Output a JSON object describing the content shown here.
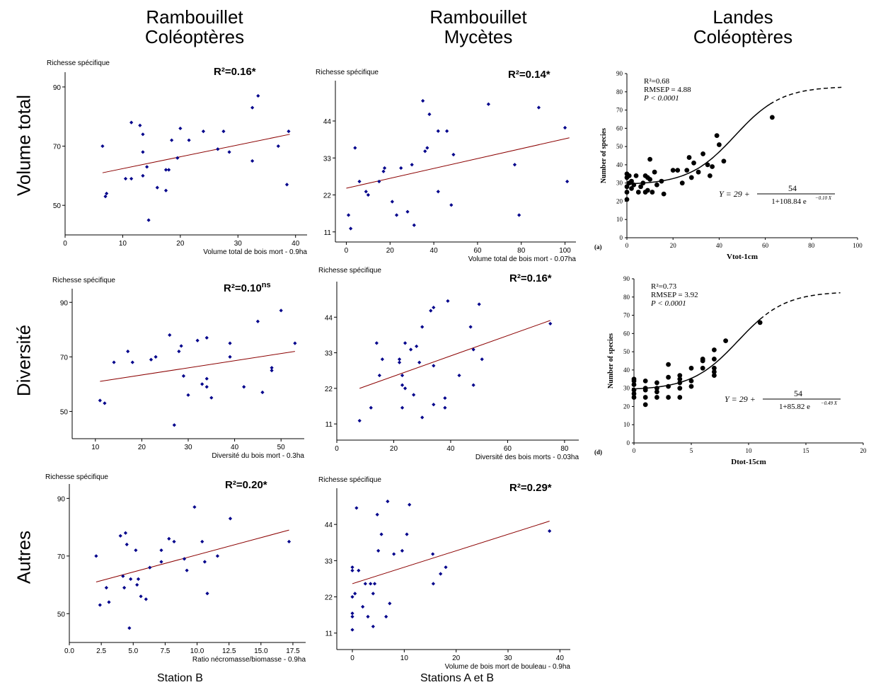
{
  "column_titles": [
    {
      "line1": "Rambouillet",
      "line2": "Coléoptères"
    },
    {
      "line1": "Rambouillet",
      "line2": "Mycètes"
    },
    {
      "line1": "Landes",
      "line2": "Coléoptères"
    }
  ],
  "row_titles": [
    "Volume total",
    "Diversité",
    "Autres"
  ],
  "footer": {
    "left": "Station B",
    "right": "Stations A et B"
  },
  "colors": {
    "points": "#00008B",
    "fit_line": "#8B0000",
    "axis": "#000000",
    "landes_points": "#000000"
  },
  "chart_data": [
    {
      "id": "rc-volume",
      "type": "scatter",
      "title": "",
      "ylabel": "Richesse spécifique",
      "xlabel": "Volume total de bois mort - 0.9ha",
      "annotation": "R²=0.16*",
      "xlim": [
        0,
        42
      ],
      "ylim": [
        40,
        95
      ],
      "xticks": [
        0,
        10,
        20,
        30,
        40
      ],
      "yticks": [
        50,
        70,
        90
      ],
      "fit": [
        [
          6.5,
          61
        ],
        [
          39,
          74
        ]
      ],
      "points": [
        [
          6.5,
          70
        ],
        [
          7,
          53
        ],
        [
          7.2,
          54
        ],
        [
          10.5,
          59
        ],
        [
          11.5,
          59
        ],
        [
          11.5,
          78
        ],
        [
          13,
          77
        ],
        [
          13.5,
          74
        ],
        [
          13.5,
          68
        ],
        [
          13.5,
          60
        ],
        [
          14.2,
          63
        ],
        [
          14.5,
          45
        ],
        [
          16,
          56
        ],
        [
          17.5,
          55
        ],
        [
          17.5,
          62
        ],
        [
          18,
          62
        ],
        [
          18.5,
          72
        ],
        [
          19.5,
          66
        ],
        [
          20,
          76
        ],
        [
          21.5,
          72
        ],
        [
          24,
          75
        ],
        [
          26.5,
          69
        ],
        [
          27.5,
          75
        ],
        [
          28.5,
          68
        ],
        [
          32.5,
          65
        ],
        [
          32.5,
          83
        ],
        [
          33.5,
          87
        ],
        [
          37,
          70
        ],
        [
          38.5,
          57
        ],
        [
          38.8,
          75
        ]
      ]
    },
    {
      "id": "rm-volume",
      "type": "scatter",
      "title": "",
      "ylabel": "Richesse spécifique",
      "xlabel": "Volume total de bois mort - 0.07ha",
      "annotation": "R²=0.14*",
      "xlim": [
        -5,
        105
      ],
      "ylim": [
        8,
        56
      ],
      "xticks": [
        0,
        20,
        40,
        60,
        80,
        100
      ],
      "yticks": [
        11,
        22,
        33,
        44
      ],
      "fit": [
        [
          0,
          24
        ],
        [
          102,
          39
        ]
      ],
      "points": [
        [
          1,
          16
        ],
        [
          2,
          12
        ],
        [
          4,
          36
        ],
        [
          6,
          26
        ],
        [
          9,
          23
        ],
        [
          10,
          22
        ],
        [
          15,
          26
        ],
        [
          17,
          29
        ],
        [
          17.5,
          30
        ],
        [
          21,
          20
        ],
        [
          23,
          16
        ],
        [
          25,
          30
        ],
        [
          28,
          17
        ],
        [
          30,
          31
        ],
        [
          31,
          13
        ],
        [
          35,
          50
        ],
        [
          36,
          35
        ],
        [
          37,
          36
        ],
        [
          38,
          46
        ],
        [
          42,
          23
        ],
        [
          42,
          41
        ],
        [
          46,
          41
        ],
        [
          48,
          19
        ],
        [
          49,
          34
        ],
        [
          65,
          49
        ],
        [
          77,
          31
        ],
        [
          79,
          16
        ],
        [
          88,
          48
        ],
        [
          100,
          42
        ],
        [
          101,
          26
        ]
      ]
    },
    {
      "id": "rc-diversite",
      "type": "scatter",
      "title": "",
      "ylabel": "Richesse spécifique",
      "xlabel": "Diversité du bois mort - 0.3ha",
      "annotation": "R²=0.10",
      "annotation_sup": "ns",
      "xlim": [
        5,
        55
      ],
      "ylim": [
        40,
        95
      ],
      "xticks": [
        10,
        20,
        30,
        40,
        50
      ],
      "yticks": [
        50,
        70,
        90
      ],
      "fit": [
        [
          11,
          61
        ],
        [
          53,
          72
        ]
      ],
      "points": [
        [
          11,
          54
        ],
        [
          12,
          53
        ],
        [
          14,
          68
        ],
        [
          17,
          72
        ],
        [
          18,
          68
        ],
        [
          22,
          69
        ],
        [
          23,
          70
        ],
        [
          26,
          78
        ],
        [
          27,
          45
        ],
        [
          28,
          72
        ],
        [
          28.5,
          74
        ],
        [
          29,
          63
        ],
        [
          30,
          56
        ],
        [
          32,
          76
        ],
        [
          33,
          60
        ],
        [
          34,
          59
        ],
        [
          34,
          77
        ],
        [
          34,
          62
        ],
        [
          35,
          55
        ],
        [
          39,
          75
        ],
        [
          39,
          70
        ],
        [
          42,
          59
        ],
        [
          45,
          83
        ],
        [
          46,
          57
        ],
        [
          48,
          65
        ],
        [
          48,
          66
        ],
        [
          50,
          87
        ],
        [
          53,
          75
        ]
      ]
    },
    {
      "id": "rm-diversite",
      "type": "scatter",
      "title": "",
      "ylabel": "Richesse spécifique",
      "xlabel": "Diversité des bois morts - 0.03ha",
      "annotation": "R²=0.16*",
      "xlim": [
        0,
        85
      ],
      "ylim": [
        6,
        55
      ],
      "xticks": [
        0,
        20,
        40,
        60,
        80
      ],
      "yticks": [
        11,
        22,
        33,
        44
      ],
      "fit": [
        [
          8,
          22
        ],
        [
          75,
          43
        ]
      ],
      "points": [
        [
          8,
          12
        ],
        [
          12,
          16
        ],
        [
          14,
          36
        ],
        [
          15,
          26
        ],
        [
          16,
          31
        ],
        [
          22,
          31
        ],
        [
          22,
          30
        ],
        [
          23,
          26
        ],
        [
          23,
          16
        ],
        [
          23,
          23
        ],
        [
          24,
          22
        ],
        [
          24,
          36
        ],
        [
          26,
          34
        ],
        [
          27,
          20
        ],
        [
          28,
          35
        ],
        [
          29,
          30
        ],
        [
          30,
          13
        ],
        [
          30,
          41
        ],
        [
          33,
          46
        ],
        [
          34,
          47
        ],
        [
          34,
          29
        ],
        [
          34,
          17
        ],
        [
          38,
          19
        ],
        [
          38,
          16
        ],
        [
          39,
          49
        ],
        [
          43,
          26
        ],
        [
          47,
          41
        ],
        [
          48,
          34
        ],
        [
          48,
          23
        ],
        [
          50,
          48
        ],
        [
          51,
          31
        ],
        [
          75,
          42
        ]
      ]
    },
    {
      "id": "rc-autres",
      "type": "scatter",
      "title": "",
      "ylabel": "Richesse spécifique",
      "xlabel": "Ratio nécromasse/biomasse - 0.9ha",
      "annotation": "R²=0.20*",
      "xlim": [
        0,
        18.5
      ],
      "ylim": [
        40,
        95
      ],
      "xticks": [
        0,
        2.5,
        5,
        7.5,
        10,
        12.5,
        15,
        17.5
      ],
      "xtick_labels": [
        "0.0",
        "2.5",
        "5.0",
        "7.5",
        "10.0",
        "12.5",
        "15.0",
        "17.5"
      ],
      "yticks": [
        50,
        70,
        90
      ],
      "fit": [
        [
          2.1,
          61
        ],
        [
          17.2,
          79
        ]
      ],
      "points": [
        [
          2.1,
          70
        ],
        [
          2.4,
          53
        ],
        [
          2.9,
          59
        ],
        [
          3.1,
          54
        ],
        [
          4,
          77
        ],
        [
          4.2,
          63
        ],
        [
          4.3,
          59
        ],
        [
          4.4,
          78
        ],
        [
          4.5,
          74
        ],
        [
          4.7,
          45
        ],
        [
          4.8,
          62
        ],
        [
          5.2,
          72
        ],
        [
          5.3,
          60
        ],
        [
          5.4,
          62
        ],
        [
          5.6,
          56
        ],
        [
          6,
          55
        ],
        [
          6.3,
          66
        ],
        [
          7.2,
          68
        ],
        [
          7.2,
          72
        ],
        [
          7.8,
          76
        ],
        [
          8.2,
          75
        ],
        [
          9,
          69
        ],
        [
          9.2,
          65
        ],
        [
          9.8,
          87
        ],
        [
          10.4,
          75
        ],
        [
          10.6,
          68
        ],
        [
          10.8,
          57
        ],
        [
          11.6,
          70
        ],
        [
          12.6,
          83
        ],
        [
          17.2,
          75
        ]
      ]
    },
    {
      "id": "rm-autres",
      "type": "scatter",
      "title": "",
      "ylabel": "Richesse spécifique",
      "xlabel": "Volume de bois mort de bouleau - 0.9ha",
      "annotation": "R²=0.29*",
      "xlim": [
        -3,
        42
      ],
      "ylim": [
        6,
        55
      ],
      "xticks": [
        0,
        10,
        20,
        30,
        40
      ],
      "yticks": [
        11,
        22,
        33,
        44
      ],
      "fit": [
        [
          0,
          26
        ],
        [
          38,
          45
        ]
      ],
      "points": [
        [
          0,
          12
        ],
        [
          0,
          16
        ],
        [
          0,
          17
        ],
        [
          0,
          22
        ],
        [
          0,
          30
        ],
        [
          0,
          31
        ],
        [
          0.5,
          23
        ],
        [
          0.8,
          49
        ],
        [
          1.2,
          30
        ],
        [
          2,
          19
        ],
        [
          2.5,
          26
        ],
        [
          3,
          16
        ],
        [
          3.5,
          26
        ],
        [
          4,
          23
        ],
        [
          4,
          13
        ],
        [
          4.3,
          26
        ],
        [
          4.8,
          47
        ],
        [
          5,
          36
        ],
        [
          5.6,
          41
        ],
        [
          6.5,
          16
        ],
        [
          6.8,
          51
        ],
        [
          7.2,
          20
        ],
        [
          8,
          35
        ],
        [
          9.6,
          36
        ],
        [
          10.5,
          41
        ],
        [
          11,
          50
        ],
        [
          15.5,
          35
        ],
        [
          15.6,
          26
        ],
        [
          17,
          29
        ],
        [
          18,
          31
        ],
        [
          38,
          42
        ]
      ]
    },
    {
      "id": "landes-volume",
      "type": "scatter",
      "title": "",
      "panel_label": "(a)",
      "ylabel": "Number of species",
      "xlabel": "Vtot-1cm",
      "stats": [
        "R²=0.68",
        "RMSEP = 4.88",
        "P < 0.0001"
      ],
      "equation": {
        "lhs": "Y = 29 +",
        "num": "54",
        "den": "1+108.84 e",
        "exp": "−0.10 X"
      },
      "xlim": [
        0,
        100
      ],
      "ylim": [
        0,
        90
      ],
      "xticks": [
        0,
        20,
        40,
        60,
        80,
        100
      ],
      "yticks": [
        0,
        10,
        20,
        30,
        40,
        50,
        60,
        70,
        80,
        90
      ],
      "curve": {
        "a": 29,
        "b": 54,
        "c": 108.84,
        "k": 0.1,
        "solid_to": 62,
        "dashed_to": 93
      },
      "points": [
        [
          0,
          21
        ],
        [
          0,
          25
        ],
        [
          0,
          28
        ],
        [
          0,
          33
        ],
        [
          0,
          35
        ],
        [
          1,
          30
        ],
        [
          1,
          34
        ],
        [
          2,
          27
        ],
        [
          2,
          31
        ],
        [
          3,
          29
        ],
        [
          4,
          34
        ],
        [
          5,
          25
        ],
        [
          6,
          28
        ],
        [
          7,
          30
        ],
        [
          8,
          34
        ],
        [
          8,
          25
        ],
        [
          9,
          26
        ],
        [
          9,
          33
        ],
        [
          10,
          32
        ],
        [
          10,
          43
        ],
        [
          11,
          25
        ],
        [
          12,
          36
        ],
        [
          13,
          29
        ],
        [
          15,
          31
        ],
        [
          16,
          24
        ],
        [
          20,
          37
        ],
        [
          22,
          37
        ],
        [
          24,
          30
        ],
        [
          26,
          37
        ],
        [
          27,
          44
        ],
        [
          28,
          33
        ],
        [
          29,
          41
        ],
        [
          31,
          36
        ],
        [
          33,
          46
        ],
        [
          35,
          40
        ],
        [
          36,
          34
        ],
        [
          37,
          39
        ],
        [
          39,
          56
        ],
        [
          40,
          51
        ],
        [
          42,
          42
        ],
        [
          63,
          66
        ]
      ]
    },
    {
      "id": "landes-diversite",
      "type": "scatter",
      "title": "",
      "panel_label": "(d)",
      "ylabel": "Number of species",
      "xlabel": "Dtot-15cm",
      "stats": [
        "R²=0.73",
        "RMSEP = 3.92",
        "P < 0.0001"
      ],
      "equation": {
        "lhs": "Y = 29 +",
        "num": "54",
        "den": "1+85.82 e",
        "exp": "−0.49 X"
      },
      "xlim": [
        0,
        20
      ],
      "ylim": [
        0,
        90
      ],
      "xticks": [
        0,
        5,
        10,
        15,
        20
      ],
      "yticks": [
        0,
        10,
        20,
        30,
        40,
        50,
        60,
        70,
        80,
        90
      ],
      "curve": {
        "a": 29,
        "b": 54,
        "c": 85.82,
        "k": 0.49,
        "solid_to": 11,
        "dashed_to": 18
      },
      "points": [
        [
          0,
          25
        ],
        [
          0,
          27
        ],
        [
          0,
          29
        ],
        [
          0,
          32
        ],
        [
          0,
          34
        ],
        [
          0,
          35
        ],
        [
          1,
          21
        ],
        [
          1,
          25
        ],
        [
          1,
          29
        ],
        [
          1,
          30
        ],
        [
          1,
          34
        ],
        [
          2,
          25
        ],
        [
          2,
          28
        ],
        [
          2,
          30
        ],
        [
          2,
          33
        ],
        [
          3,
          25
        ],
        [
          3,
          31
        ],
        [
          3,
          36
        ],
        [
          3,
          43
        ],
        [
          4,
          25
        ],
        [
          4,
          30
        ],
        [
          4,
          33
        ],
        [
          4,
          35
        ],
        [
          4,
          37
        ],
        [
          5,
          31
        ],
        [
          5,
          34
        ],
        [
          5,
          41
        ],
        [
          6,
          41
        ],
        [
          6,
          45
        ],
        [
          6,
          46
        ],
        [
          7,
          37
        ],
        [
          7,
          39
        ],
        [
          7,
          41
        ],
        [
          7,
          46
        ],
        [
          7,
          51
        ],
        [
          8,
          56
        ],
        [
          11,
          66
        ]
      ]
    }
  ]
}
